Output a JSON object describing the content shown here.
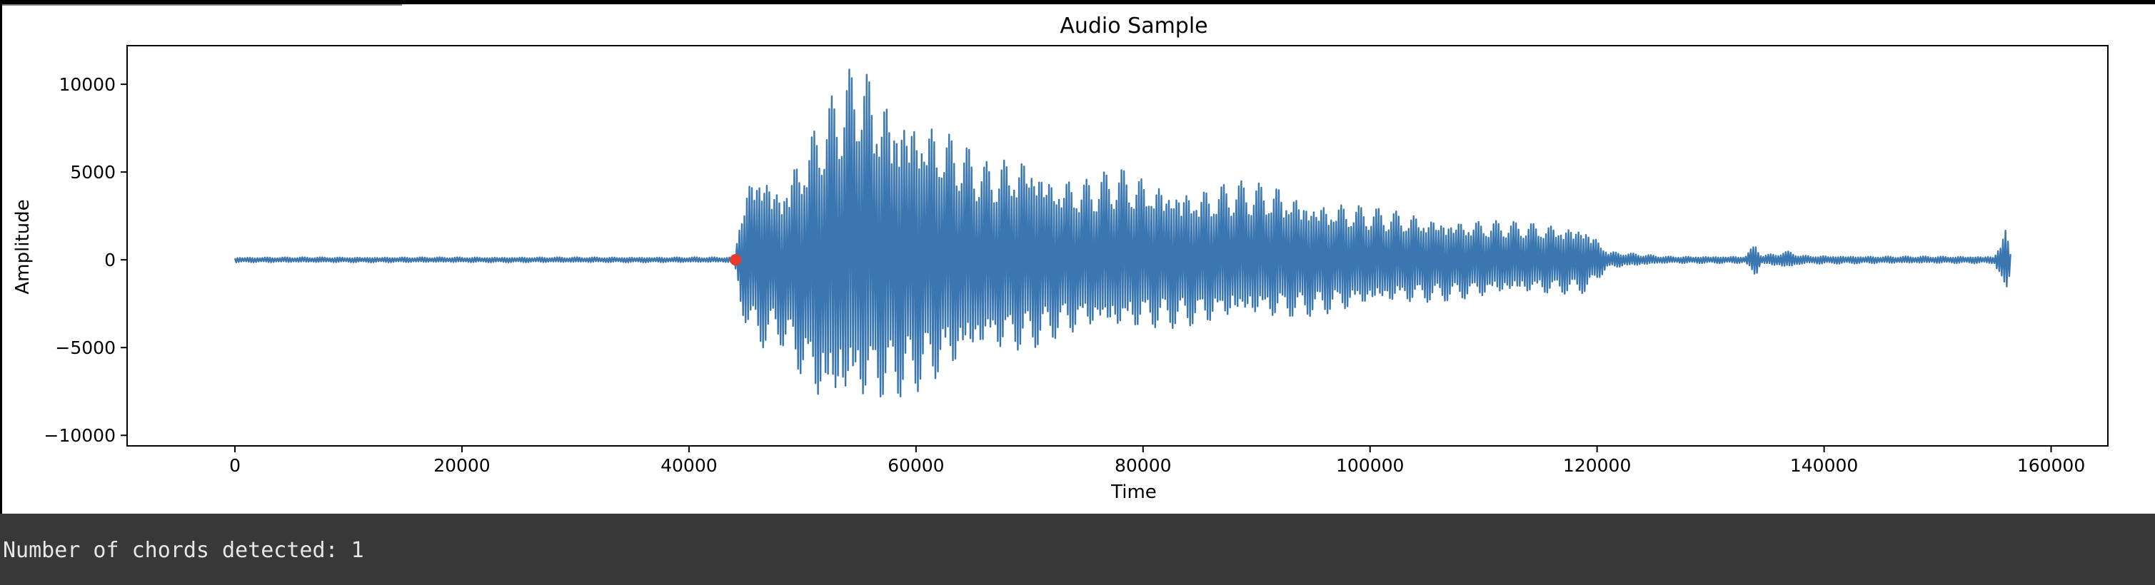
{
  "cell_output": {
    "stdout_text": "Number of chords detected: 1"
  },
  "colors": {
    "waveform": "#3a76b0",
    "marker": "#e8392c",
    "output_background": "#383838",
    "output_text": "#e6e6e6"
  },
  "chart_data": {
    "type": "line",
    "title": "Audio Sample",
    "xlabel": "Time",
    "ylabel": "Amplitude",
    "xlim": [
      -9500,
      165000
    ],
    "ylim": [
      -10600,
      12200
    ],
    "x_ticks": [
      0,
      20000,
      40000,
      60000,
      80000,
      100000,
      120000,
      140000,
      160000
    ],
    "y_ticks": [
      -10000,
      -5000,
      0,
      5000,
      10000
    ],
    "x_tick_labels": [
      "0",
      "20000",
      "40000",
      "60000",
      "80000",
      "100000",
      "120000",
      "140000",
      "160000"
    ],
    "y_tick_labels": [
      "−10000",
      "−5000",
      "0",
      "5000",
      "10000"
    ],
    "grid": false,
    "legend": "none",
    "series": [
      {
        "x": [
          0,
          44000,
          44500,
          46000,
          48000,
          52000,
          55000,
          57000,
          60000,
          63000,
          66000,
          70000,
          72000,
          75000,
          78000,
          80000,
          85000,
          88000,
          92000,
          95000,
          98000,
          100000,
          104000,
          108000,
          112000,
          116000,
          119000,
          121000,
          126000,
          133000,
          134000,
          134500,
          137000,
          138000,
          145000,
          155000,
          156000,
          156500
        ],
        "envelope_max": [
          150,
          150,
          3100,
          6000,
          4400,
          8800,
          11800,
          10000,
          9000,
          7400,
          5600,
          6500,
          5100,
          4700,
          5300,
          4900,
          4200,
          4500,
          4400,
          3600,
          3300,
          3000,
          2700,
          2400,
          2200,
          2100,
          2000,
          500,
          200,
          200,
          1000,
          250,
          500,
          250,
          200,
          200,
          1900,
          200
        ],
        "envelope_min": [
          -150,
          -150,
          -3100,
          -5100,
          -4800,
          -9400,
          -8600,
          -8200,
          -7600,
          -6800,
          -5600,
          -5200,
          -4600,
          -4200,
          -4400,
          -4000,
          -3800,
          -3600,
          -3400,
          -3200,
          -3000,
          -2800,
          -2500,
          -2300,
          -2100,
          -2000,
          -1900,
          -500,
          -200,
          -200,
          -1000,
          -250,
          -500,
          -250,
          -200,
          -200,
          -2300,
          -200
        ]
      }
    ],
    "markers": [
      {
        "x": 44100,
        "y": 0
      }
    ]
  }
}
